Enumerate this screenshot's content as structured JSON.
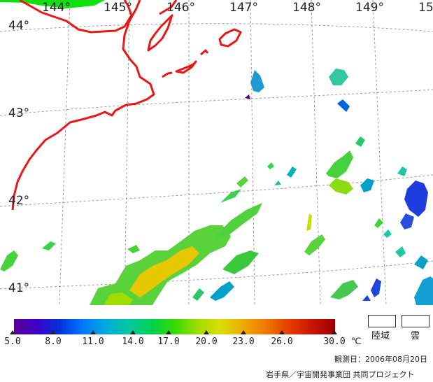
{
  "map": {
    "lon_labels": [
      "144°",
      "145°",
      "146°",
      "147°",
      "148°",
      "149°",
      "15"
    ],
    "lat_labels": [
      "44°",
      "43°",
      "42°",
      "41°"
    ],
    "coast_color": "#e81818",
    "grid_color": "#9a9a9a"
  },
  "legend": {
    "colorbar": {
      "colors": [
        "#5a0096",
        "#3c00c8",
        "#0032dc",
        "#0078ff",
        "#00aadc",
        "#00c8a0",
        "#00d250",
        "#32dc00",
        "#a0dc00",
        "#dcdc00",
        "#f0aa00",
        "#f07800",
        "#e63c00",
        "#c81400",
        "#a00000"
      ],
      "ticks": [
        "5.0",
        "8.0",
        "11.0",
        "14.0",
        "17.0",
        "20.0",
        "23.0",
        "26.0",
        "30.0"
      ],
      "unit": "℃"
    },
    "land_label": "陸域",
    "cloud_label": "雲",
    "date": "観測日：2006年08月20日",
    "credit": "岩手県／宇宙開発事業団 共同プロジェクト"
  }
}
